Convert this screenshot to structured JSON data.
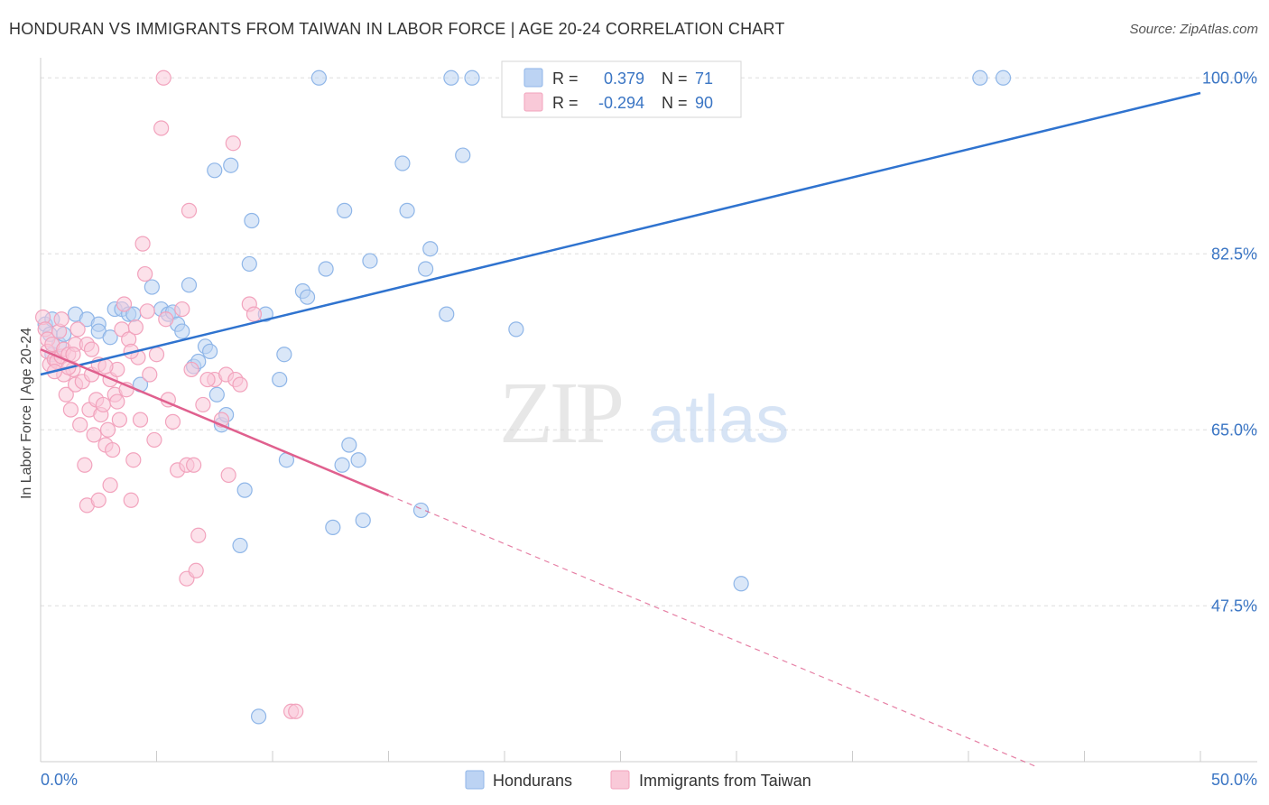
{
  "title": "HONDURAN VS IMMIGRANTS FROM TAIWAN IN LABOR FORCE | AGE 20-24 CORRELATION CHART",
  "source": "Source: ZipAtlas.com",
  "watermark": {
    "zip": "ZIP",
    "atlas": "atlas"
  },
  "colors": {
    "blue": "#8fb6e8",
    "blue_line": "#2f73cf",
    "pink": "#f2a3bd",
    "pink_line": "#e0608e",
    "label_blue": "#3a75c4"
  },
  "legend_stats": [
    {
      "r_label": "R =",
      "r_value": "0.379",
      "n_label": "N =",
      "n_value": "71"
    },
    {
      "r_label": "R =",
      "r_value": "-0.294",
      "n_label": "N =",
      "n_value": "90"
    }
  ],
  "legend_bottom": [
    "Hondurans",
    "Immigrants from Taiwan"
  ],
  "chart_data": {
    "type": "scatter",
    "title": "HONDURAN VS IMMIGRANTS FROM TAIWAN IN LABOR FORCE | AGE 20-24 CORRELATION CHART",
    "xlabel": "",
    "ylabel": "In Labor Force | Age 20-24",
    "xlim": [
      0,
      50
    ],
    "ylim": [
      32,
      102
    ],
    "x_tick_labels": [
      "0.0%",
      "50.0%"
    ],
    "y_ticks": [
      47.5,
      65.0,
      82.5,
      100.0
    ],
    "y_tick_labels": [
      "47.5%",
      "65.0%",
      "82.5%",
      "100.0%"
    ],
    "grid": true,
    "legend_position": "top-center",
    "series": [
      {
        "name": "Hondurans",
        "r": 0.379,
        "n": 71,
        "trend": {
          "x": [
            0,
            50
          ],
          "y": [
            70.5,
            98.5
          ],
          "dashed_x": []
        },
        "points": [
          [
            0.2,
            75.5
          ],
          [
            0.4,
            74.5
          ],
          [
            0.5,
            76
          ],
          [
            0.5,
            72.5
          ],
          [
            0.8,
            73.5
          ],
          [
            1,
            74.5
          ],
          [
            1.5,
            76.5
          ],
          [
            2,
            76
          ],
          [
            2.5,
            75.5
          ],
          [
            2.5,
            74.8
          ],
          [
            3,
            74.2
          ],
          [
            3.2,
            77
          ],
          [
            3.5,
            77
          ],
          [
            3.8,
            76.5
          ],
          [
            4,
            76.5
          ],
          [
            4.3,
            69.5
          ],
          [
            4.8,
            79.2
          ],
          [
            5.2,
            77
          ],
          [
            5.5,
            76.5
          ],
          [
            5.7,
            76.7
          ],
          [
            5.9,
            75.5
          ],
          [
            6.1,
            74.8
          ],
          [
            6.4,
            79.4
          ],
          [
            6.6,
            71.3
          ],
          [
            6.8,
            71.8
          ],
          [
            7.1,
            73.3
          ],
          [
            7.3,
            72.8
          ],
          [
            7.6,
            68.5
          ],
          [
            7.8,
            65.5
          ],
          [
            8,
            66.5
          ],
          [
            7.5,
            90.8
          ],
          [
            8.2,
            91.3
          ],
          [
            8.8,
            59
          ],
          [
            8.6,
            53.5
          ],
          [
            9,
            81.5
          ],
          [
            9.1,
            85.8
          ],
          [
            9.7,
            76.5
          ],
          [
            9.4,
            36.5
          ],
          [
            10.3,
            70
          ],
          [
            10.5,
            72.5
          ],
          [
            10.6,
            62
          ],
          [
            11.3,
            78.8
          ],
          [
            11.5,
            78.2
          ],
          [
            12,
            100
          ],
          [
            12.3,
            81
          ],
          [
            12.6,
            55.3
          ],
          [
            13,
            61.5
          ],
          [
            13.1,
            86.8
          ],
          [
            13.3,
            63.5
          ],
          [
            13.7,
            62
          ],
          [
            13.9,
            56
          ],
          [
            14.2,
            81.8
          ],
          [
            15.6,
            91.5
          ],
          [
            15.8,
            86.8
          ],
          [
            16.4,
            57
          ],
          [
            16.6,
            81
          ],
          [
            16.8,
            83
          ],
          [
            17.5,
            76.5
          ],
          [
            17.7,
            100
          ],
          [
            18.2,
            92.3
          ],
          [
            20.2,
            100
          ],
          [
            21.8,
            100
          ],
          [
            23.8,
            100
          ],
          [
            24.6,
            100
          ],
          [
            20.5,
            75
          ],
          [
            30.2,
            49.7
          ],
          [
            40.5,
            100
          ],
          [
            41.5,
            100
          ],
          [
            20.8,
            100
          ],
          [
            18.6,
            100
          ],
          [
            25,
            100
          ]
        ]
      },
      {
        "name": "Immigrants from Taiwan",
        "r": -0.294,
        "n": 90,
        "trend": {
          "x": [
            0,
            15
          ],
          "y": [
            73,
            58.5
          ],
          "dashed_x": [
            15,
            43
          ]
        },
        "points": [
          [
            0.1,
            76.2
          ],
          [
            0.2,
            75
          ],
          [
            0.3,
            74
          ],
          [
            0.3,
            72.8
          ],
          [
            0.4,
            71.5
          ],
          [
            0.5,
            73.5
          ],
          [
            0.6,
            72
          ],
          [
            0.7,
            71.8
          ],
          [
            0.8,
            74.8
          ],
          [
            0.9,
            72.3
          ],
          [
            1,
            70.5
          ],
          [
            1,
            73
          ],
          [
            1.1,
            68.5
          ],
          [
            1.2,
            72.5
          ],
          [
            1.3,
            67
          ],
          [
            1.4,
            71
          ],
          [
            1.5,
            69.5
          ],
          [
            1.5,
            73.5
          ],
          [
            1.6,
            75
          ],
          [
            1.7,
            65.5
          ],
          [
            1.8,
            69.8
          ],
          [
            1.9,
            61.5
          ],
          [
            2,
            73.5
          ],
          [
            2,
            57.5
          ],
          [
            2.1,
            67
          ],
          [
            2.2,
            70.5
          ],
          [
            2.3,
            64.5
          ],
          [
            2.4,
            68
          ],
          [
            2.5,
            58
          ],
          [
            2.5,
            71.5
          ],
          [
            2.6,
            66.5
          ],
          [
            2.7,
            67.5
          ],
          [
            2.8,
            63.5
          ],
          [
            2.9,
            65
          ],
          [
            3,
            59.5
          ],
          [
            3,
            70
          ],
          [
            3.1,
            63
          ],
          [
            3.2,
            68.5
          ],
          [
            3.3,
            71
          ],
          [
            3.4,
            66
          ],
          [
            3.5,
            75
          ],
          [
            3.6,
            77.5
          ],
          [
            3.7,
            69
          ],
          [
            3.8,
            74
          ],
          [
            3.9,
            58
          ],
          [
            4,
            62
          ],
          [
            4.2,
            72.2
          ],
          [
            4.3,
            66
          ],
          [
            4.4,
            83.5
          ],
          [
            4.5,
            80.5
          ],
          [
            4.7,
            70.5
          ],
          [
            4.9,
            64
          ],
          [
            5,
            72.5
          ],
          [
            5.2,
            95
          ],
          [
            5.3,
            100
          ],
          [
            5.4,
            76
          ],
          [
            5.5,
            68
          ],
          [
            5.7,
            65.8
          ],
          [
            5.9,
            61
          ],
          [
            6.1,
            77
          ],
          [
            6.3,
            61.5
          ],
          [
            6.3,
            50.2
          ],
          [
            6.5,
            71
          ],
          [
            6.6,
            61.5
          ],
          [
            6.7,
            51
          ],
          [
            6.8,
            54.5
          ],
          [
            7,
            67.5
          ],
          [
            7.5,
            70
          ],
          [
            7.8,
            66
          ],
          [
            8,
            70.5
          ],
          [
            8.1,
            60.5
          ],
          [
            8.3,
            93.5
          ],
          [
            8.4,
            70
          ],
          [
            8.6,
            69.5
          ],
          [
            9,
            77.5
          ],
          [
            9.2,
            76.5
          ],
          [
            10.8,
            37
          ],
          [
            11,
            37
          ],
          [
            6.4,
            86.8
          ],
          [
            7.2,
            70
          ],
          [
            1.2,
            71.2
          ],
          [
            0.9,
            76
          ],
          [
            1.4,
            72.5
          ],
          [
            2.2,
            73
          ],
          [
            2.8,
            71.3
          ],
          [
            3.3,
            67.8
          ],
          [
            3.9,
            72.8
          ],
          [
            4.1,
            75.2
          ],
          [
            4.6,
            76.8
          ],
          [
            0.6,
            70.8
          ]
        ]
      }
    ]
  }
}
